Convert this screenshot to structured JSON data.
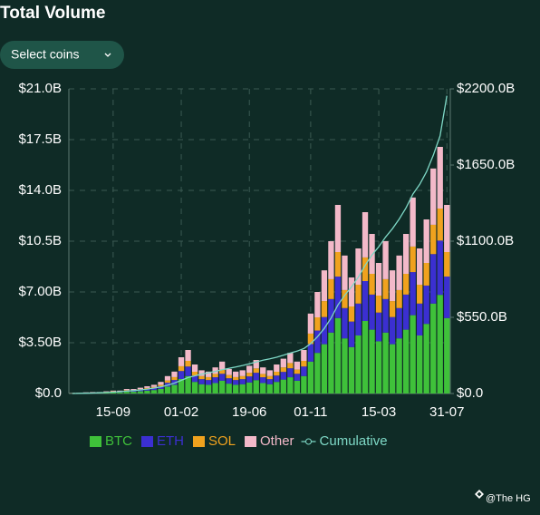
{
  "chart_data": {
    "type": "bar",
    "stacked": true,
    "title": "Total Volume",
    "categories": [
      null,
      null,
      null,
      null,
      null,
      null,
      "15-09",
      null,
      null,
      null,
      null,
      null,
      null,
      null,
      null,
      null,
      "01-02",
      null,
      null,
      null,
      null,
      null,
      null,
      null,
      null,
      null,
      "19-06",
      null,
      null,
      null,
      null,
      null,
      null,
      null,
      null,
      "01-11",
      null,
      null,
      null,
      null,
      null,
      null,
      null,
      null,
      null,
      "15-03",
      null,
      null,
      null,
      null,
      null,
      null,
      null,
      null,
      null,
      "31-07"
    ],
    "series": [
      {
        "name": "BTC",
        "color": "#3fc13a",
        "values": [
          0.02,
          0.02,
          0.03,
          0.04,
          0.04,
          0.06,
          0.08,
          0.08,
          0.12,
          0.12,
          0.16,
          0.2,
          0.24,
          0.32,
          0.48,
          0.6,
          1.0,
          1.2,
          0.8,
          0.64,
          0.6,
          0.72,
          0.88,
          0.68,
          0.6,
          0.64,
          0.76,
          0.92,
          0.72,
          0.64,
          0.8,
          0.96,
          1.12,
          0.88,
          1.2,
          2.2,
          2.8,
          3.4,
          4.2,
          5.2,
          3.8,
          3.2,
          4.0,
          5.0,
          4.4,
          3.6,
          4.2,
          3.4,
          3.8,
          4.4,
          5.4,
          4.0,
          4.8,
          6.2,
          6.8,
          5.2
        ]
      },
      {
        "name": "ETH",
        "color": "#3b2fd1",
        "values": [
          0.01,
          0.01,
          0.02,
          0.02,
          0.02,
          0.03,
          0.04,
          0.04,
          0.07,
          0.07,
          0.09,
          0.11,
          0.13,
          0.18,
          0.26,
          0.33,
          0.55,
          0.66,
          0.44,
          0.35,
          0.33,
          0.4,
          0.48,
          0.37,
          0.33,
          0.35,
          0.42,
          0.51,
          0.4,
          0.35,
          0.44,
          0.53,
          0.62,
          0.48,
          0.66,
          1.21,
          1.54,
          1.87,
          2.31,
          2.86,
          2.09,
          1.76,
          2.2,
          2.75,
          2.42,
          1.98,
          2.31,
          1.87,
          2.09,
          2.42,
          2.97,
          2.2,
          2.64,
          3.41,
          3.74,
          2.86
        ]
      },
      {
        "name": "SOL",
        "color": "#f0a21e",
        "values": [
          0.01,
          0.01,
          0.01,
          0.01,
          0.01,
          0.02,
          0.03,
          0.03,
          0.04,
          0.04,
          0.05,
          0.07,
          0.08,
          0.1,
          0.16,
          0.2,
          0.33,
          0.39,
          0.26,
          0.21,
          0.2,
          0.23,
          0.29,
          0.22,
          0.2,
          0.21,
          0.25,
          0.3,
          0.23,
          0.21,
          0.26,
          0.31,
          0.36,
          0.29,
          0.39,
          0.72,
          0.91,
          1.1,
          1.37,
          1.69,
          1.24,
          1.04,
          1.3,
          1.63,
          1.43,
          1.17,
          1.37,
          1.1,
          1.24,
          1.43,
          1.76,
          1.3,
          1.56,
          2.02,
          2.21,
          1.69
        ]
      },
      {
        "name": "Other",
        "color": "#f3b9c9",
        "values": [
          0.01,
          0.01,
          0.02,
          0.03,
          0.03,
          0.04,
          0.05,
          0.05,
          0.08,
          0.08,
          0.1,
          0.12,
          0.15,
          0.2,
          0.3,
          0.38,
          0.62,
          0.75,
          0.5,
          0.4,
          0.38,
          0.45,
          0.55,
          0.42,
          0.38,
          0.4,
          0.48,
          0.58,
          0.45,
          0.4,
          0.5,
          0.6,
          0.7,
          0.55,
          0.75,
          1.38,
          1.75,
          2.12,
          2.62,
          3.25,
          2.38,
          2.0,
          2.5,
          3.12,
          2.75,
          2.25,
          2.62,
          2.12,
          2.38,
          2.75,
          3.38,
          2.5,
          3.0,
          3.88,
          4.25,
          3.25
        ]
      },
      {
        "name": "Cumulative",
        "color": "#7ed8c6",
        "type": "line",
        "axis": "y2",
        "values": [
          0,
          1,
          2,
          3,
          5,
          7,
          10,
          13,
          17,
          21,
          26,
          32,
          39,
          48,
          60,
          75,
          95,
          115,
          128,
          140,
          150,
          160,
          172,
          182,
          192,
          202,
          214,
          228,
          240,
          250,
          262,
          276,
          292,
          306,
          325,
          360,
          410,
          470,
          545,
          640,
          710,
          770,
          840,
          925,
          1000,
          1060,
          1130,
          1190,
          1260,
          1340,
          1440,
          1510,
          1600,
          1720,
          1860,
          2150
        ]
      }
    ],
    "ylim": [
      0,
      21
    ],
    "yticks": [
      {
        "value": 0,
        "label": "$0.0"
      },
      {
        "value": 3.5,
        "label": "$3.50B"
      },
      {
        "value": 7,
        "label": "$7.00B"
      },
      {
        "value": 10.5,
        "label": "$10.5B"
      },
      {
        "value": 14,
        "label": "$14.0B"
      },
      {
        "value": 17.5,
        "label": "$17.5B"
      },
      {
        "value": 21,
        "label": "$21.0B"
      }
    ],
    "y2lim": [
      0,
      2200
    ],
    "y2ticks": [
      {
        "value": 0,
        "label": "$0.0"
      },
      {
        "value": 550,
        "label": "$550.0B"
      },
      {
        "value": 1100,
        "label": "$1100.0B"
      },
      {
        "value": 1650,
        "label": "$1650.0B"
      },
      {
        "value": 2200,
        "label": "$2200.0B"
      }
    ],
    "grid": true,
    "legend": "bottom"
  },
  "controls": {
    "select": "Select coins"
  },
  "watermark": "@The HG"
}
